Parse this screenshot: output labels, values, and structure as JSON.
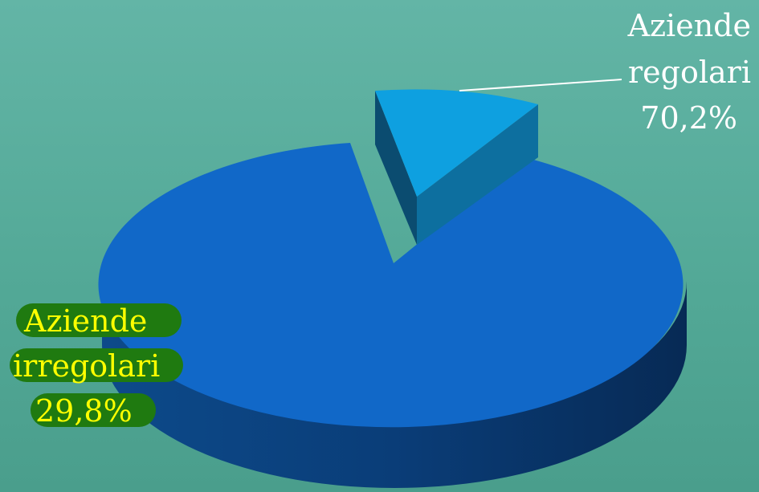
{
  "chart_data": {
    "type": "pie",
    "style": "3d-exploded",
    "title": "",
    "slices": [
      {
        "label_lines": [
          "Aziende",
          "regolari"
        ],
        "value_label": "70,2%",
        "value": 70.2,
        "color": "#0ea0e0"
      },
      {
        "label_lines": [
          "Aziende",
          "irregolari"
        ],
        "value_label": "29,8%",
        "value": 29.8,
        "color": "#1168c8"
      }
    ],
    "legend": "none",
    "colors": {
      "background": "#5bae9e",
      "label_text_regular": "#ffffff",
      "label_text_irregular": "#ffff00",
      "label_highlight": "#1f7a10"
    }
  }
}
